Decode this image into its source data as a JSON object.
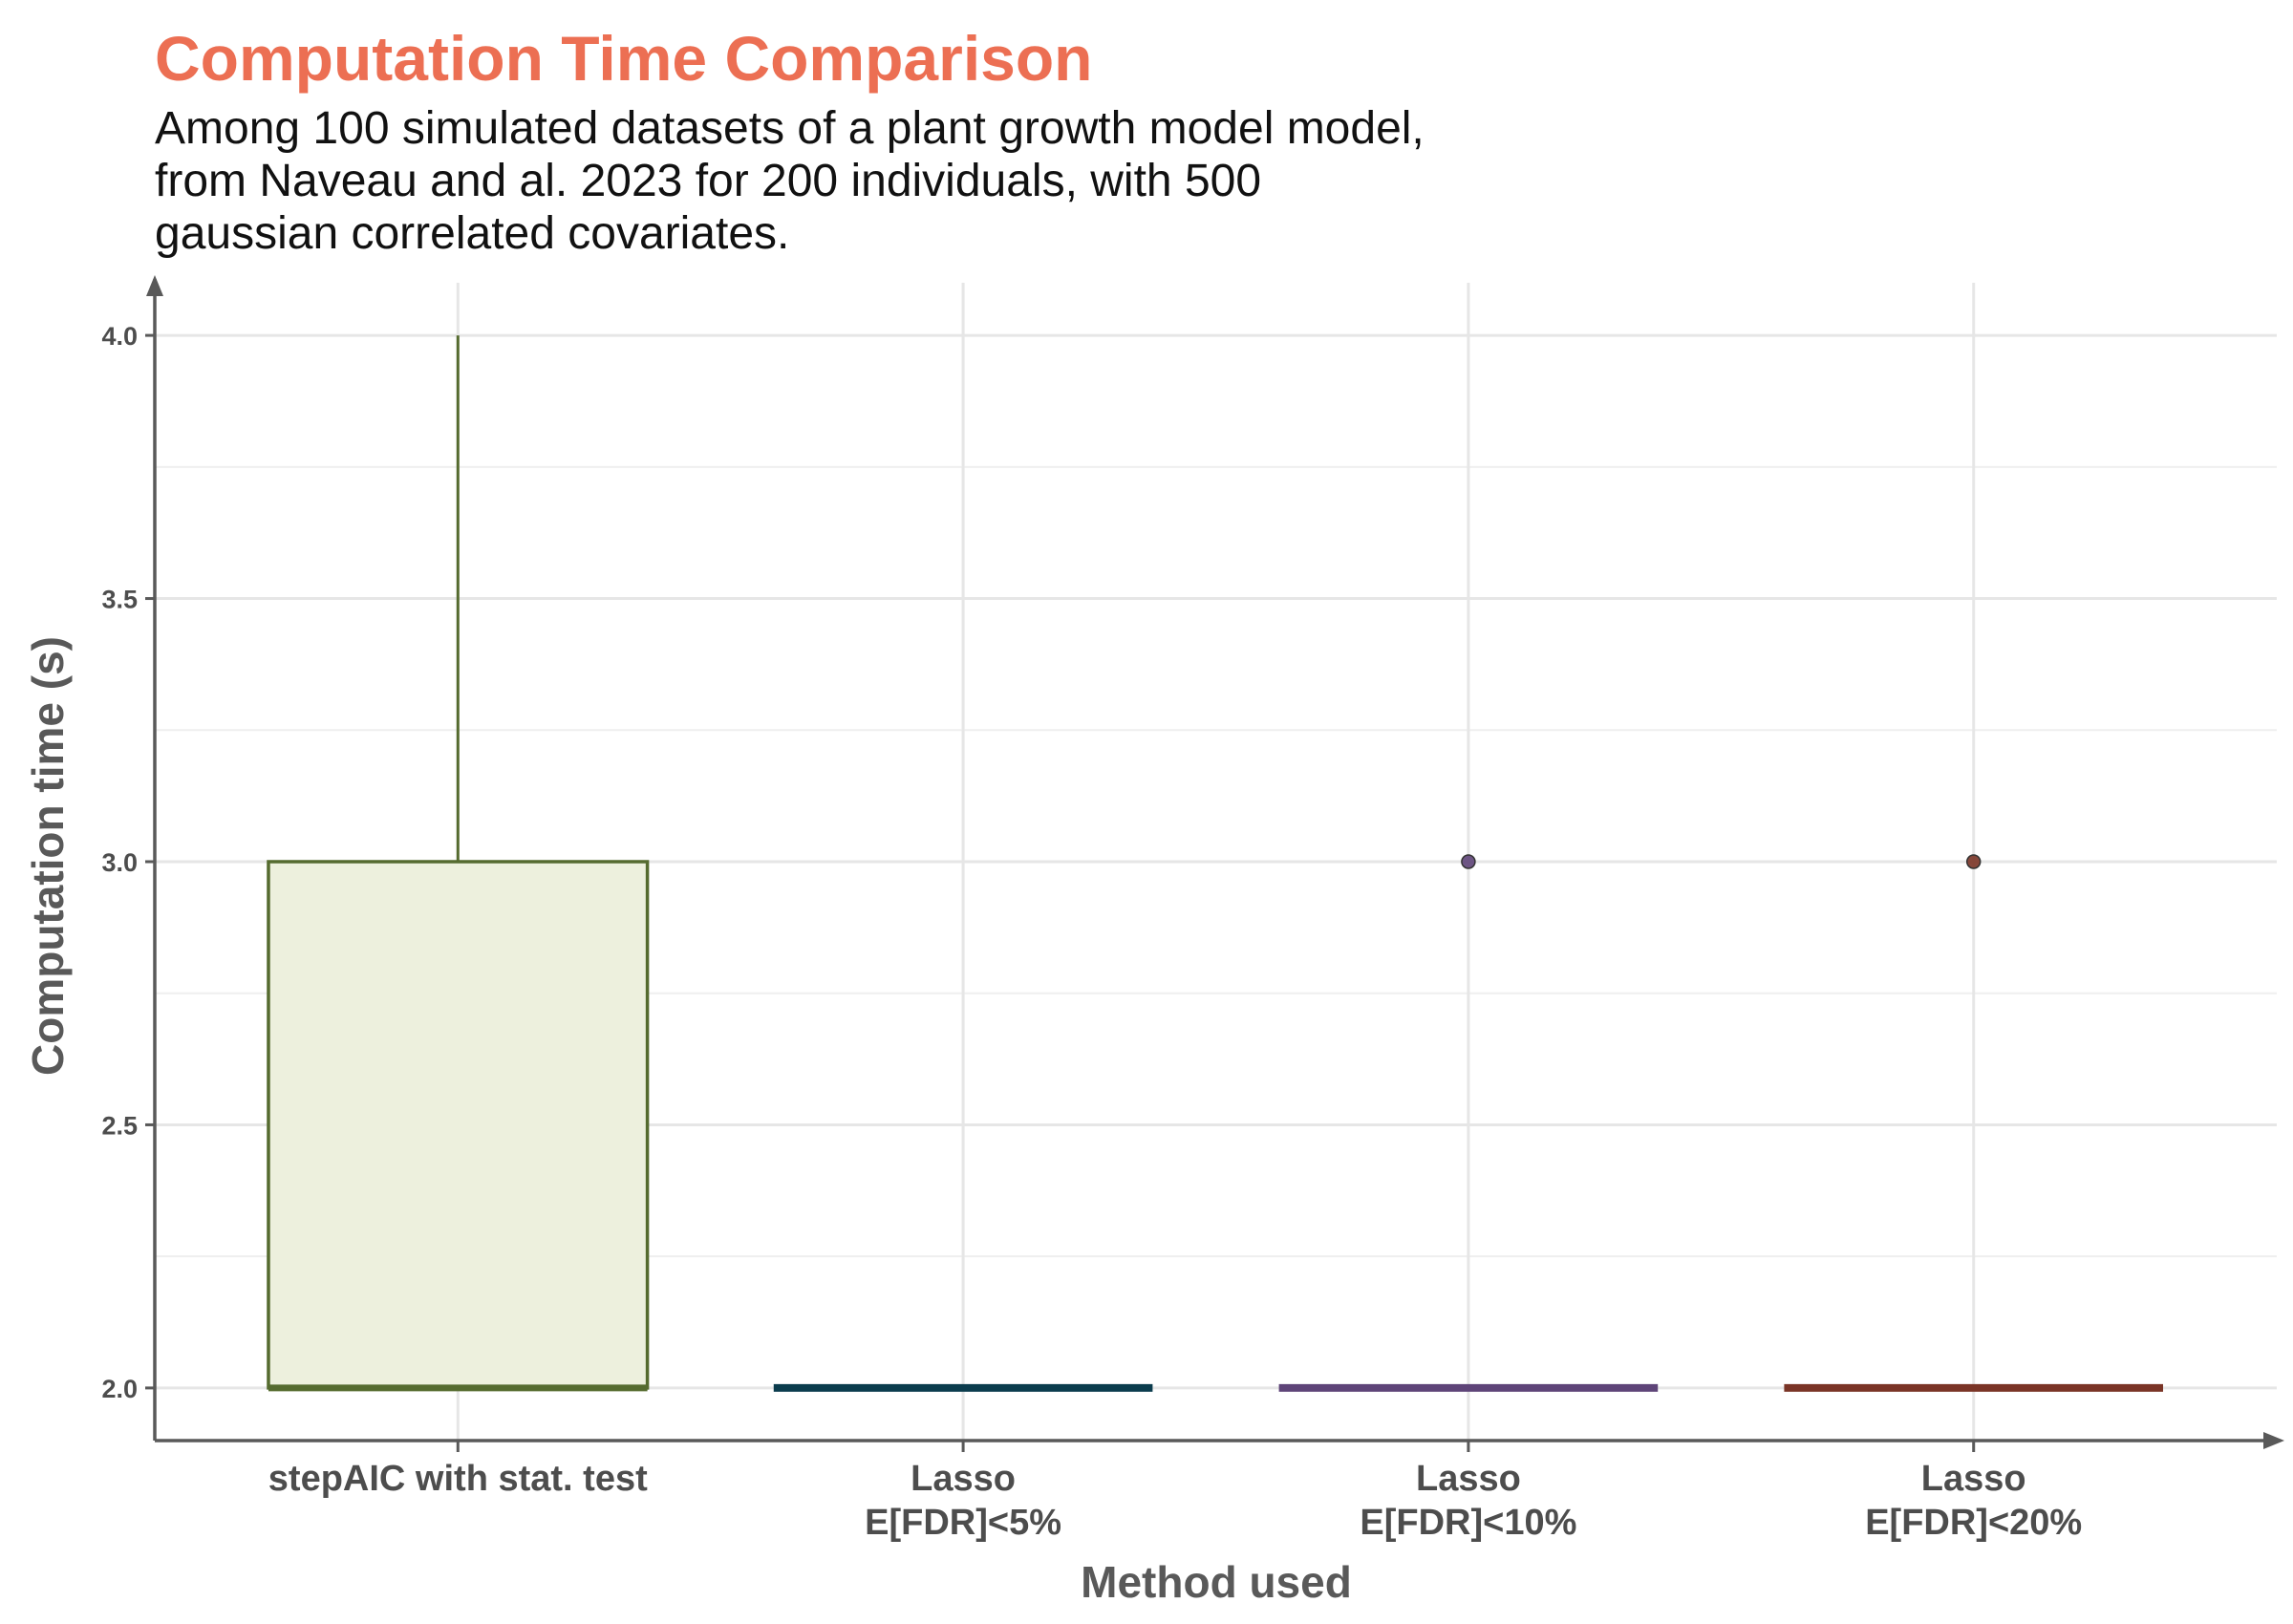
{
  "title": "Computation Time Comparison",
  "subtitle_lines": [
    "Among 100 simulated datasets of a plant growth model model,",
    "from Naveau and al. 2023 for 200 individuals, with 500",
    "gaussian correlated covariates."
  ],
  "chart_data": {
    "type": "boxplot",
    "xlabel": "Method used",
    "ylabel": "Computation time (s)",
    "ylim": [
      1.9,
      4.1
    ],
    "y_ticks": [
      "2.0",
      "2.5",
      "3.0",
      "3.5",
      "4.0"
    ],
    "grid": "major and minor",
    "legend": "none",
    "categories": [
      [
        "stepAIC with stat. test"
      ],
      [
        "Lasso",
        "E[FDR]<5%"
      ],
      [
        "Lasso",
        "E[FDR]<10%"
      ],
      [
        "Lasso",
        "E[FDR]<20%"
      ]
    ],
    "boxes": [
      {
        "min": 2.0,
        "q1": 2.0,
        "median": 2.0,
        "q3": 3.0,
        "max": 4.0,
        "outliers": [],
        "color": "#556B2F",
        "fill": "#EDF0DD"
      },
      {
        "min": 2.0,
        "q1": 2.0,
        "median": 2.0,
        "q3": 2.0,
        "max": 2.0,
        "outliers": [],
        "color": "#0B3C4D",
        "fill": "#0B3C4D"
      },
      {
        "min": 2.0,
        "q1": 2.0,
        "median": 2.0,
        "q3": 2.0,
        "max": 2.0,
        "outliers": [
          3.0
        ],
        "color": "#5E4478",
        "fill": "#5E4478"
      },
      {
        "min": 2.0,
        "q1": 2.0,
        "median": 2.0,
        "q3": 2.0,
        "max": 2.0,
        "outliers": [
          3.0
        ],
        "color": "#7A3426",
        "fill": "#7A3426"
      }
    ]
  }
}
